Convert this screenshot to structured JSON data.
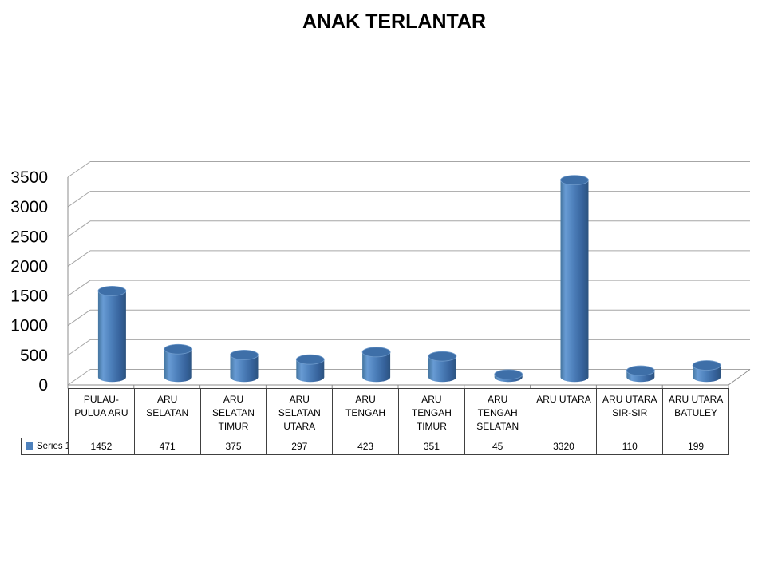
{
  "title": "ANAK TERLANTAR",
  "chart_data": {
    "type": "bar",
    "subtype": "cylinder-3d",
    "title": "ANAK TERLANTAR",
    "categories": [
      [
        "PULAU-",
        "PULUA ARU"
      ],
      [
        "ARU",
        "SELATAN"
      ],
      [
        "ARU",
        "SELATAN",
        "TIMUR"
      ],
      [
        "ARU",
        "SELATAN",
        "UTARA"
      ],
      [
        "ARU",
        "TENGAH"
      ],
      [
        "ARU",
        "TENGAH",
        "TIMUR"
      ],
      [
        "ARU",
        "TENGAH",
        "SELATAN"
      ],
      [
        "ARU UTARA"
      ],
      [
        "ARU UTARA",
        "SIR-SIR"
      ],
      [
        "ARU UTARA",
        "BATULEY"
      ]
    ],
    "series": [
      {
        "name": "Series 1",
        "values": [
          1452,
          471,
          375,
          297,
          423,
          351,
          45,
          3320,
          110,
          199
        ]
      }
    ],
    "xlabel": "",
    "ylabel": "",
    "ylim": [
      0,
      3500
    ],
    "ytick_step": 500,
    "ytick_labels": [
      "0",
      "500",
      "1000",
      "1500",
      "2000",
      "2500",
      "3000",
      "3500"
    ],
    "grid": true,
    "legend_position": "data-table-left",
    "data_table_shown": true,
    "colors": {
      "bar_main": "#4E81BC",
      "bar_highlight": "#689BD4",
      "bar_dark": "#2C537F",
      "bar_left_edge": "#44759F",
      "bar_top": "#3E6FA8",
      "bar_top_rim": "#6F9BCC",
      "gridline": "#A6A6A6",
      "axis": "#8C8C8C",
      "table_border": "#404040",
      "text": "#000000"
    }
  }
}
